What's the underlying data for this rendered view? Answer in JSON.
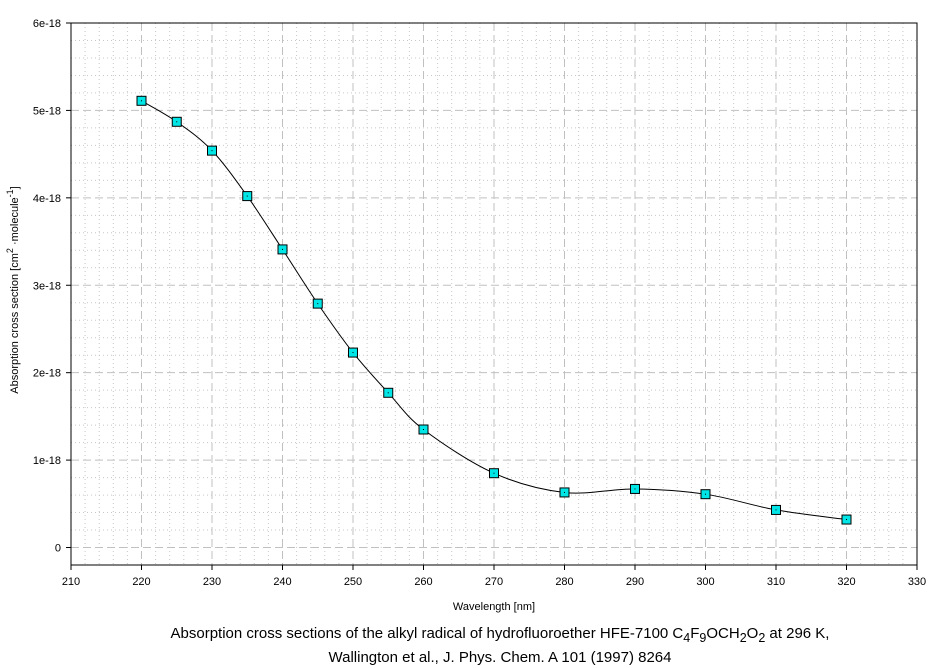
{
  "chart_data": {
    "type": "line",
    "xlabel": "Wavelength [nm]",
    "ylabel": {
      "prefix": "Absorption cross section [cm",
      "sup1": "2",
      "mid": " ·molecule",
      "sup2": "-1",
      "suffix": "]"
    },
    "xlim": [
      210,
      330
    ],
    "ylim": [
      -2e-19,
      6e-18
    ],
    "xticks": [
      "210",
      "220",
      "230",
      "240",
      "250",
      "260",
      "270",
      "280",
      "290",
      "300",
      "310",
      "320",
      "330"
    ],
    "yticks": [
      {
        "value": 0,
        "label": "0"
      },
      {
        "value": 1e-18,
        "label": "1e-18"
      },
      {
        "value": 2e-18,
        "label": "2e-18"
      },
      {
        "value": 3e-18,
        "label": "3e-18"
      },
      {
        "value": 4e-18,
        "label": "4e-18"
      },
      {
        "value": 5e-18,
        "label": "5e-18"
      },
      {
        "value": 6e-18,
        "label": "6e-18"
      }
    ],
    "grid": true,
    "marker": "square",
    "marker_color": "#00e5e5",
    "line_color": "#000000",
    "series": [
      {
        "x": [
          220,
          225,
          230,
          235,
          240,
          245,
          250,
          255,
          260,
          270,
          280,
          290,
          300,
          310,
          320
        ],
        "y": [
          5.11e-18,
          4.87e-18,
          4.54e-18,
          4.02e-18,
          3.41e-18,
          2.79e-18,
          2.23e-18,
          1.77e-18,
          1.35e-18,
          8.5e-19,
          6.3e-19,
          6.7e-19,
          6.1e-19,
          4.3e-19,
          3.2e-19
        ]
      }
    ]
  },
  "caption": {
    "line1": {
      "a": "Absorption cross sections of the alkyl radical of hydrofluoroether HFE-7100 C",
      "s1": "4",
      "b": "F",
      "s2": "9",
      "c": "OCH",
      "s3": "2",
      "d": "O",
      "s4": "2",
      "e": " at 296 K,"
    },
    "line2": "Wallington et al., J. Phys. Chem. A 101 (1997) 8264"
  }
}
